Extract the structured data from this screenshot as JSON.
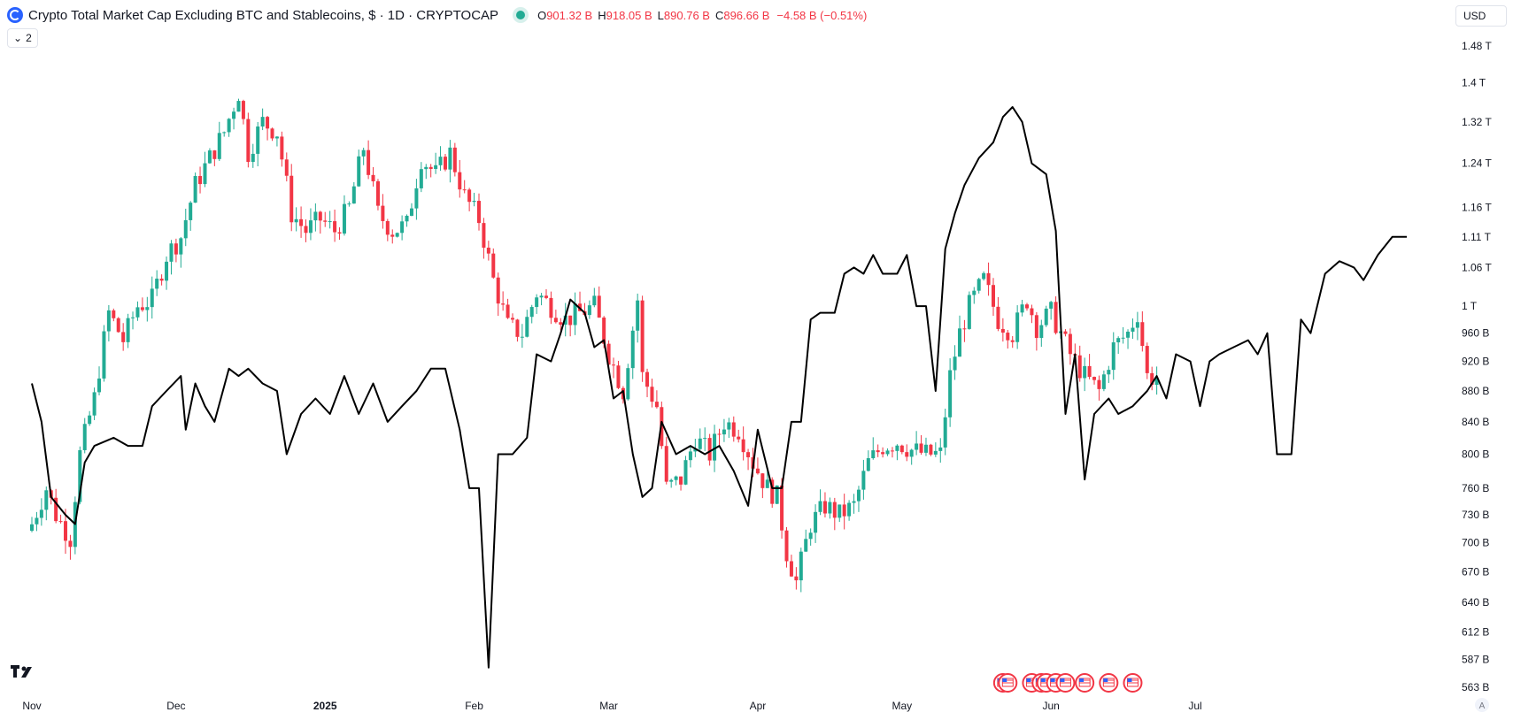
{
  "header": {
    "title": "Crypto Total Market Cap Excluding BTC and Stablecoins, $ · 1D · CRYPTOCAP",
    "open_key": "O",
    "open_val": "901.32 B",
    "high_key": "H",
    "high_val": "918.05 B",
    "low_key": "L",
    "low_val": "890.76 B",
    "close_key": "C",
    "close_val": "896.66 B",
    "change": "−4.58 B (−0.51%)",
    "collapse_count": "2"
  },
  "currency": {
    "label": "USD"
  },
  "colors": {
    "up": "#22ab94",
    "down": "#f23645",
    "overlay": "#000000",
    "status": "#22ab94"
  },
  "chart_data": {
    "type": "candlestick",
    "y_scale": "log",
    "y_ticks": [
      {
        "label": "1.48 T",
        "value": 1480
      },
      {
        "label": "1.4 T",
        "value": 1400
      },
      {
        "label": "1.32 T",
        "value": 1320
      },
      {
        "label": "1.24 T",
        "value": 1240
      },
      {
        "label": "1.16 T",
        "value": 1160
      },
      {
        "label": "1.11 T",
        "value": 1110
      },
      {
        "label": "1.06 T",
        "value": 1060
      },
      {
        "label": "1 T",
        "value": 1000
      },
      {
        "label": "960 B",
        "value": 960
      },
      {
        "label": "920 B",
        "value": 920
      },
      {
        "label": "880 B",
        "value": 880
      },
      {
        "label": "840 B",
        "value": 840
      },
      {
        "label": "800 B",
        "value": 800
      },
      {
        "label": "760 B",
        "value": 760
      },
      {
        "label": "730 B",
        "value": 730
      },
      {
        "label": "700 B",
        "value": 700
      },
      {
        "label": "670 B",
        "value": 670
      },
      {
        "label": "640 B",
        "value": 640
      },
      {
        "label": "612 B",
        "value": 612
      },
      {
        "label": "587 B",
        "value": 587
      },
      {
        "label": "563 B",
        "value": 563
      }
    ],
    "x_ticks": [
      {
        "label": "Nov",
        "day": 0
      },
      {
        "label": "Dec",
        "day": 30
      },
      {
        "label": "2025",
        "day": 61,
        "bold": true
      },
      {
        "label": "Feb",
        "day": 92
      },
      {
        "label": "Mar",
        "day": 120
      },
      {
        "label": "Apr",
        "day": 151
      },
      {
        "label": "May",
        "day": 181
      },
      {
        "label": "Jun",
        "day": 212
      },
      {
        "label": "Jul",
        "day": 242
      }
    ],
    "candle_closes": [
      {
        "day": 0,
        "close": 720
      },
      {
        "day": 3,
        "close": 760
      },
      {
        "day": 5,
        "close": 730
      },
      {
        "day": 8,
        "close": 705
      },
      {
        "day": 10,
        "close": 800
      },
      {
        "day": 13,
        "close": 870
      },
      {
        "day": 16,
        "close": 990
      },
      {
        "day": 19,
        "close": 950
      },
      {
        "day": 22,
        "close": 1000
      },
      {
        "day": 25,
        "close": 1010
      },
      {
        "day": 28,
        "close": 1080
      },
      {
        "day": 31,
        "close": 1110
      },
      {
        "day": 34,
        "close": 1200
      },
      {
        "day": 37,
        "close": 1250
      },
      {
        "day": 40,
        "close": 1300
      },
      {
        "day": 43,
        "close": 1380
      },
      {
        "day": 45,
        "close": 1260
      },
      {
        "day": 48,
        "close": 1320
      },
      {
        "day": 51,
        "close": 1300
      },
      {
        "day": 54,
        "close": 1150
      },
      {
        "day": 57,
        "close": 1120
      },
      {
        "day": 60,
        "close": 1140
      },
      {
        "day": 63,
        "close": 1120
      },
      {
        "day": 66,
        "close": 1160
      },
      {
        "day": 69,
        "close": 1270
      },
      {
        "day": 72,
        "close": 1150
      },
      {
        "day": 75,
        "close": 1120
      },
      {
        "day": 78,
        "close": 1130
      },
      {
        "day": 81,
        "close": 1250
      },
      {
        "day": 84,
        "close": 1220
      },
      {
        "day": 87,
        "close": 1260
      },
      {
        "day": 90,
        "close": 1180
      },
      {
        "day": 93,
        "close": 1140
      },
      {
        "day": 96,
        "close": 1040
      },
      {
        "day": 99,
        "close": 970
      },
      {
        "day": 102,
        "close": 960
      },
      {
        "day": 105,
        "close": 1020
      },
      {
        "day": 108,
        "close": 1000
      },
      {
        "day": 111,
        "close": 980
      },
      {
        "day": 114,
        "close": 990
      },
      {
        "day": 117,
        "close": 1000
      },
      {
        "day": 120,
        "close": 930
      },
      {
        "day": 123,
        "close": 880
      },
      {
        "day": 126,
        "close": 1010
      },
      {
        "day": 127,
        "close": 900
      },
      {
        "day": 130,
        "close": 860
      },
      {
        "day": 132,
        "close": 760
      },
      {
        "day": 135,
        "close": 770
      },
      {
        "day": 138,
        "close": 820
      },
      {
        "day": 141,
        "close": 800
      },
      {
        "day": 144,
        "close": 840
      },
      {
        "day": 147,
        "close": 830
      },
      {
        "day": 150,
        "close": 790
      },
      {
        "day": 153,
        "close": 760
      },
      {
        "day": 155,
        "close": 750
      },
      {
        "day": 157,
        "close": 690
      },
      {
        "day": 159,
        "close": 660
      },
      {
        "day": 162,
        "close": 720
      },
      {
        "day": 165,
        "close": 740
      },
      {
        "day": 168,
        "close": 730
      },
      {
        "day": 171,
        "close": 740
      },
      {
        "day": 174,
        "close": 790
      },
      {
        "day": 177,
        "close": 810
      },
      {
        "day": 180,
        "close": 815
      },
      {
        "day": 183,
        "close": 805
      },
      {
        "day": 186,
        "close": 800
      },
      {
        "day": 189,
        "close": 800
      },
      {
        "day": 191,
        "close": 900
      },
      {
        "day": 193,
        "close": 960
      },
      {
        "day": 195,
        "close": 1000
      },
      {
        "day": 198,
        "close": 1040
      },
      {
        "day": 201,
        "close": 980
      },
      {
        "day": 204,
        "close": 960
      },
      {
        "day": 207,
        "close": 1010
      },
      {
        "day": 209,
        "close": 970
      },
      {
        "day": 212,
        "close": 990
      },
      {
        "day": 214,
        "close": 960
      },
      {
        "day": 216,
        "close": 930
      },
      {
        "day": 219,
        "close": 900
      },
      {
        "day": 222,
        "close": 880
      },
      {
        "day": 225,
        "close": 940
      },
      {
        "day": 228,
        "close": 960
      },
      {
        "day": 230,
        "close": 990
      },
      {
        "day": 232,
        "close": 900
      },
      {
        "day": 234,
        "close": 897
      }
    ],
    "overlay_series": [
      {
        "day": 0,
        "value": 890
      },
      {
        "day": 2,
        "value": 840
      },
      {
        "day": 4,
        "value": 750
      },
      {
        "day": 7,
        "value": 730
      },
      {
        "day": 9,
        "value": 720
      },
      {
        "day": 11,
        "value": 790
      },
      {
        "day": 13,
        "value": 810
      },
      {
        "day": 17,
        "value": 820
      },
      {
        "day": 20,
        "value": 810
      },
      {
        "day": 23,
        "value": 810
      },
      {
        "day": 25,
        "value": 860
      },
      {
        "day": 28,
        "value": 880
      },
      {
        "day": 31,
        "value": 900
      },
      {
        "day": 32,
        "value": 830
      },
      {
        "day": 34,
        "value": 890
      },
      {
        "day": 36,
        "value": 860
      },
      {
        "day": 38,
        "value": 840
      },
      {
        "day": 41,
        "value": 910
      },
      {
        "day": 43,
        "value": 900
      },
      {
        "day": 45,
        "value": 910
      },
      {
        "day": 48,
        "value": 890
      },
      {
        "day": 51,
        "value": 880
      },
      {
        "day": 53,
        "value": 800
      },
      {
        "day": 56,
        "value": 850
      },
      {
        "day": 59,
        "value": 870
      },
      {
        "day": 62,
        "value": 850
      },
      {
        "day": 65,
        "value": 900
      },
      {
        "day": 68,
        "value": 850
      },
      {
        "day": 71,
        "value": 890
      },
      {
        "day": 74,
        "value": 840
      },
      {
        "day": 77,
        "value": 860
      },
      {
        "day": 80,
        "value": 880
      },
      {
        "day": 83,
        "value": 910
      },
      {
        "day": 86,
        "value": 910
      },
      {
        "day": 89,
        "value": 830
      },
      {
        "day": 91,
        "value": 760
      },
      {
        "day": 93,
        "value": 760
      },
      {
        "day": 95,
        "value": 580
      },
      {
        "day": 97,
        "value": 800
      },
      {
        "day": 100,
        "value": 800
      },
      {
        "day": 103,
        "value": 820
      },
      {
        "day": 105,
        "value": 930
      },
      {
        "day": 108,
        "value": 920
      },
      {
        "day": 110,
        "value": 960
      },
      {
        "day": 112,
        "value": 1010
      },
      {
        "day": 115,
        "value": 990
      },
      {
        "day": 117,
        "value": 940
      },
      {
        "day": 119,
        "value": 950
      },
      {
        "day": 121,
        "value": 870
      },
      {
        "day": 123,
        "value": 880
      },
      {
        "day": 125,
        "value": 800
      },
      {
        "day": 127,
        "value": 750
      },
      {
        "day": 129,
        "value": 760
      },
      {
        "day": 131,
        "value": 840
      },
      {
        "day": 134,
        "value": 800
      },
      {
        "day": 137,
        "value": 810
      },
      {
        "day": 140,
        "value": 800
      },
      {
        "day": 143,
        "value": 810
      },
      {
        "day": 146,
        "value": 780
      },
      {
        "day": 149,
        "value": 740
      },
      {
        "day": 151,
        "value": 830
      },
      {
        "day": 154,
        "value": 760
      },
      {
        "day": 156,
        "value": 760
      },
      {
        "day": 158,
        "value": 840
      },
      {
        "day": 160,
        "value": 840
      },
      {
        "day": 162,
        "value": 980
      },
      {
        "day": 164,
        "value": 990
      },
      {
        "day": 167,
        "value": 990
      },
      {
        "day": 169,
        "value": 1050
      },
      {
        "day": 171,
        "value": 1060
      },
      {
        "day": 173,
        "value": 1050
      },
      {
        "day": 175,
        "value": 1080
      },
      {
        "day": 177,
        "value": 1050
      },
      {
        "day": 180,
        "value": 1050
      },
      {
        "day": 182,
        "value": 1080
      },
      {
        "day": 184,
        "value": 1000
      },
      {
        "day": 186,
        "value": 1000
      },
      {
        "day": 188,
        "value": 880
      },
      {
        "day": 190,
        "value": 1090
      },
      {
        "day": 192,
        "value": 1150
      },
      {
        "day": 194,
        "value": 1200
      },
      {
        "day": 197,
        "value": 1250
      },
      {
        "day": 200,
        "value": 1280
      },
      {
        "day": 202,
        "value": 1330
      },
      {
        "day": 204,
        "value": 1350
      },
      {
        "day": 206,
        "value": 1320
      },
      {
        "day": 208,
        "value": 1240
      },
      {
        "day": 211,
        "value": 1220
      },
      {
        "day": 213,
        "value": 1120
      },
      {
        "day": 215,
        "value": 850
      },
      {
        "day": 217,
        "value": 930
      },
      {
        "day": 219,
        "value": 770
      },
      {
        "day": 221,
        "value": 850
      },
      {
        "day": 224,
        "value": 870
      },
      {
        "day": 226,
        "value": 850
      },
      {
        "day": 229,
        "value": 860
      },
      {
        "day": 232,
        "value": 880
      },
      {
        "day": 234,
        "value": 900
      },
      {
        "day": 236,
        "value": 870
      },
      {
        "day": 238,
        "value": 930
      },
      {
        "day": 241,
        "value": 920
      },
      {
        "day": 243,
        "value": 860
      },
      {
        "day": 245,
        "value": 920
      },
      {
        "day": 247,
        "value": 930
      },
      {
        "day": 250,
        "value": 940
      },
      {
        "day": 253,
        "value": 950
      },
      {
        "day": 255,
        "value": 930
      },
      {
        "day": 257,
        "value": 960
      },
      {
        "day": 259,
        "value": 800
      },
      {
        "day": 262,
        "value": 800
      },
      {
        "day": 264,
        "value": 980
      },
      {
        "day": 266,
        "value": 960
      },
      {
        "day": 269,
        "value": 1050
      },
      {
        "day": 272,
        "value": 1070
      },
      {
        "day": 275,
        "value": 1060
      },
      {
        "day": 277,
        "value": 1040
      },
      {
        "day": 280,
        "value": 1080
      },
      {
        "day": 283,
        "value": 1110
      },
      {
        "day": 286,
        "value": 1110
      }
    ],
    "event_markers": [
      {
        "day": 202
      },
      {
        "day": 203
      },
      {
        "day": 208
      },
      {
        "day": 210
      },
      {
        "day": 211
      },
      {
        "day": 213
      },
      {
        "day": 215
      },
      {
        "day": 219
      },
      {
        "day": 224
      },
      {
        "day": 229
      }
    ]
  }
}
